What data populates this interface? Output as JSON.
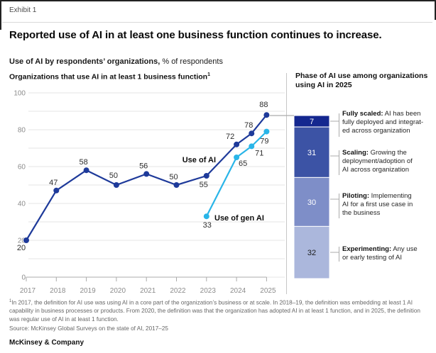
{
  "exhibit_label": "Exhibit 1",
  "title": "Reported use of AI in at least one business function continues to increase.",
  "subtitle": {
    "bold": "Use of AI by respondents’ organizations,",
    "rest": " % of respondents"
  },
  "chart_data": {
    "type": "line",
    "title": "Organizations that use AI in at least 1 business function",
    "title_superscript": "1",
    "ylabel": "% of respondents",
    "ylim": [
      0,
      100
    ],
    "y_tick_step": 20,
    "grid_step": 10,
    "x_tick_labels": [
      "2017",
      "2018",
      "2019",
      "2020",
      "2021",
      "2022",
      "2023",
      "2024",
      "2025"
    ],
    "legend_position": "inline-labels",
    "grid": true,
    "series": [
      {
        "name": "Use of AI",
        "color": "#1e3a9a",
        "x": [
          2017,
          2018,
          2019,
          2020,
          2021,
          2022,
          2023,
          2024,
          2024.5,
          2025
        ],
        "values": [
          20,
          47,
          58,
          50,
          56,
          50,
          55,
          72,
          78,
          88
        ]
      },
      {
        "name": "Use of gen AI",
        "color": "#29b5e8",
        "x": [
          2023,
          2024,
          2024.5,
          2025
        ],
        "values": [
          33,
          65,
          71,
          79
        ]
      }
    ]
  },
  "phase_panel": {
    "heading": "Phase of AI use among organizations using AI in 2025",
    "segments": [
      {
        "value": 7,
        "color": "#14278f",
        "text_color": "#ffffff",
        "term": "Fully scaled:",
        "desc": " AI has been\nfully deployed and integrat-\ned across organization"
      },
      {
        "value": 31,
        "color": "#3c53a5",
        "text_color": "#ffffff",
        "term": "Scaling:",
        "desc": " Growing the\ndeployment/adoption of\nAI across organization"
      },
      {
        "value": 30,
        "color": "#7e8ec8",
        "text_color": "#ffffff",
        "term": "Piloting:",
        "desc": " Implementing\nAI for a first use case in\nthe business"
      },
      {
        "value": 32,
        "color": "#abb7dc",
        "text_color": "#1a1a1a",
        "term": "Experimenting:",
        "desc": " Any use\nor early testing of AI"
      }
    ]
  },
  "footnote": {
    "marker": "1",
    "text": "In 2017, the definition for AI use was using AI in a core part of the organization’s business or at scale. In 2018–19, the definition was embedding at least 1 AI capability in business processes or products. From 2020, the definition was that the organization has adopted AI in at least 1 function, and in 2025, the definition was regular use of AI in at least 1 function.",
    "source": "Source: McKinsey Global Surveys on the state of AI, 2017–25"
  },
  "footer": "McKinsey & Company"
}
